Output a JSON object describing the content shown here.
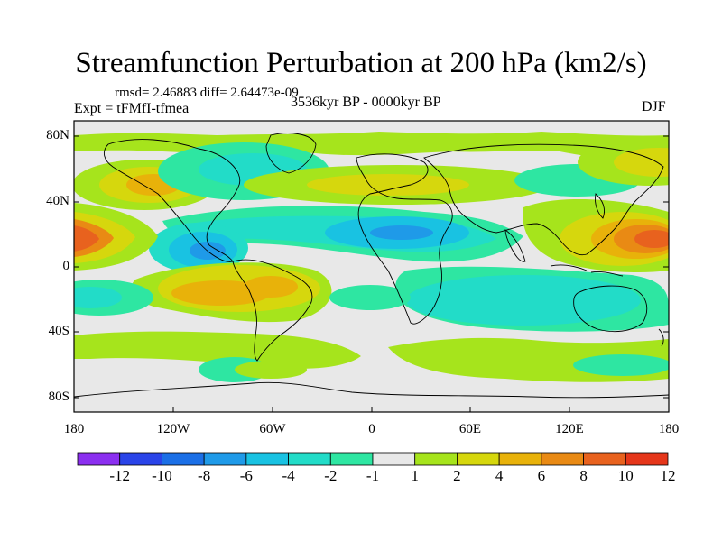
{
  "title": "Streamfunction Perturbation at 200 hPa (km2/s)",
  "stats_text": "rmsd= 2.46883 diff= 2.64473e-09",
  "experiment_text": "Expt = tFMfI-tfmea",
  "period_text": "3536kyr BP - 0000kyr BP",
  "season_text": "DJF",
  "y_ticks": [
    "80N",
    "40N",
    "0",
    "40S",
    "80S"
  ],
  "x_ticks": [
    "180",
    "120W",
    "60W",
    "0",
    "60E",
    "120E",
    "180"
  ],
  "colorbar": {
    "labels": [
      "-12",
      "-10",
      "-8",
      "-6",
      "-4",
      "-2",
      "-1",
      "1",
      "2",
      "4",
      "6",
      "8",
      "10",
      "12"
    ],
    "colors": [
      "#8b2ff0",
      "#2a44e8",
      "#1b6fe6",
      "#1f9ae8",
      "#19c2e2",
      "#22dcc8",
      "#2ee6a2",
      "#e8e8e8",
      "#a6e41c",
      "#d6d70d",
      "#e8b20a",
      "#e98a14",
      "#e8621e",
      "#e5361a"
    ]
  },
  "colors": {
    "background_field": "#e8e8e8",
    "coast": "#000000"
  }
}
